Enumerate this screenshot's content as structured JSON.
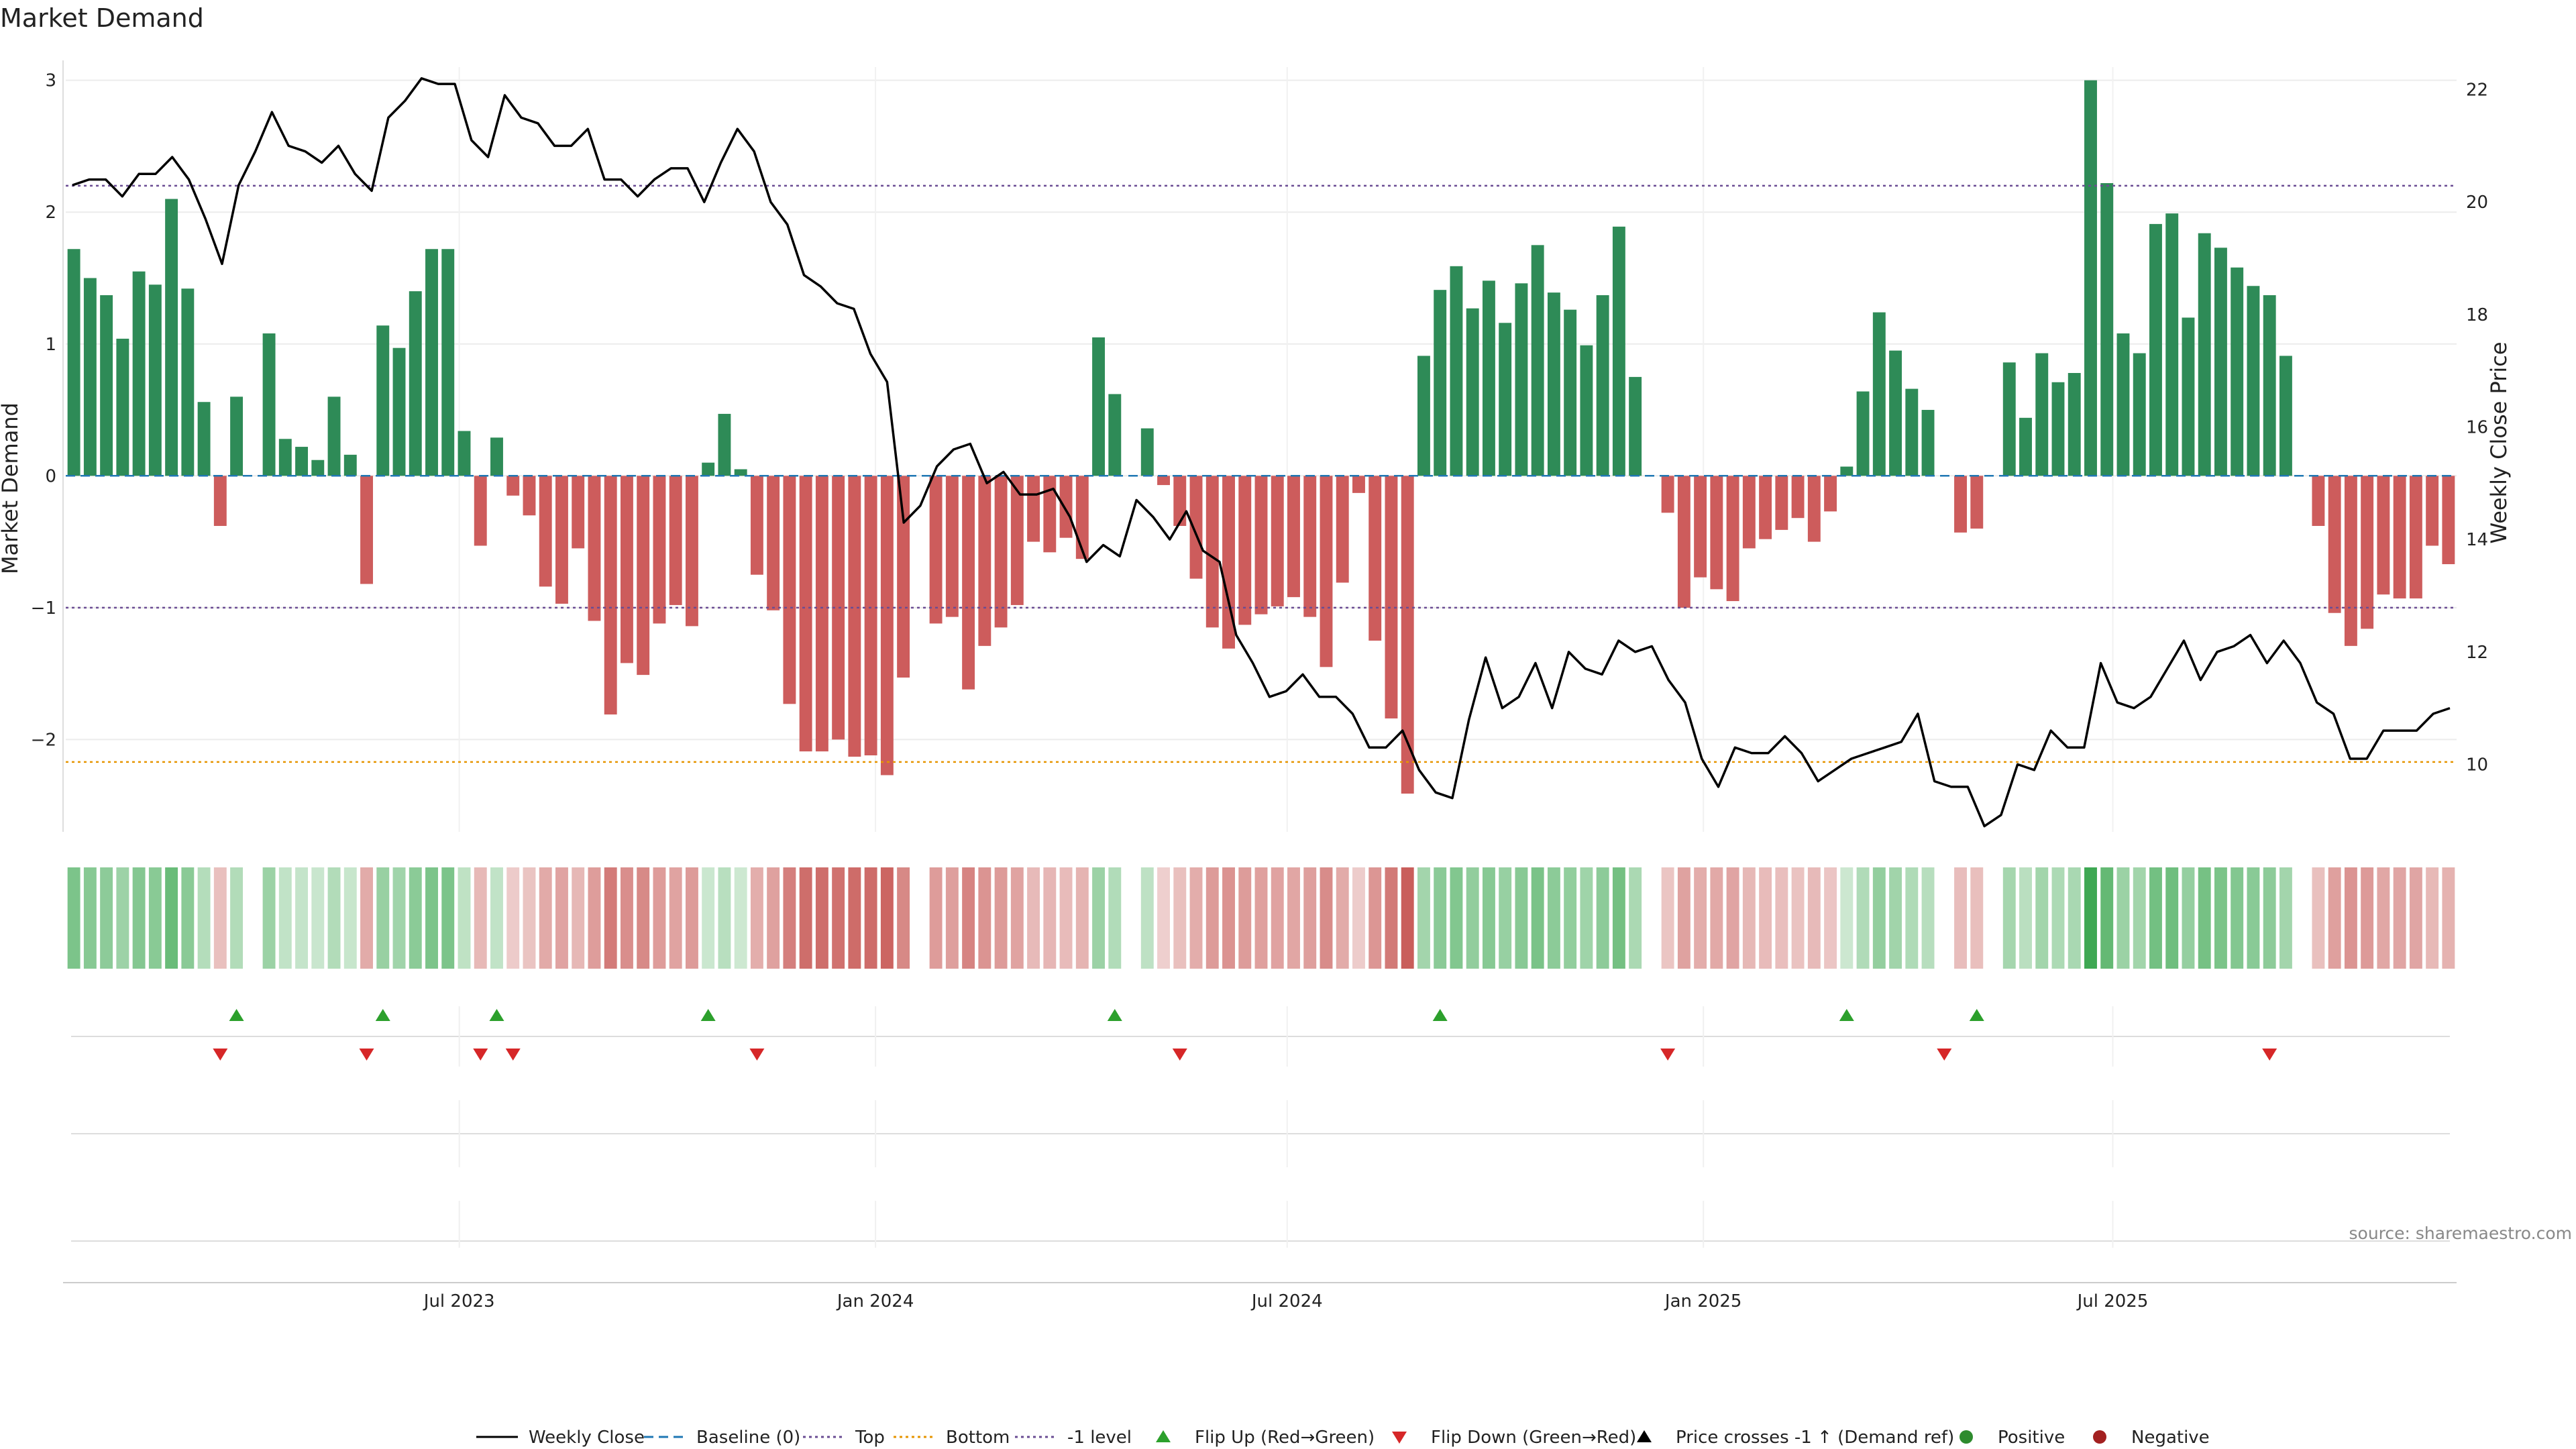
{
  "chart_data": {
    "type": "bar",
    "title": "Market Demand",
    "ylabel": "Market Demand",
    "y2label": "Weekly Close Price",
    "ylim": [
      -2.7,
      3.1
    ],
    "y2lim": [
      8.8,
      22.4
    ],
    "yticks": [
      3,
      2,
      1,
      0,
      -1,
      -2
    ],
    "yticklabels": [
      "3",
      "2",
      "1",
      "0",
      "−1",
      "−2"
    ],
    "y2ticks": [
      22,
      20,
      18,
      16,
      14,
      12,
      10
    ],
    "y2ticklabels": [
      "22",
      "20",
      "18",
      "16",
      "14",
      "12",
      "10"
    ],
    "reference_lines": {
      "top": 2.2,
      "bottom": -2.17,
      "minus_one": -1.0
    },
    "x_start": "2023-01-08",
    "x_end": "2025-11-30",
    "x_ticks": [
      {
        "date": "2023-07-01",
        "label": "Jul 2023"
      },
      {
        "date": "2024-01-01",
        "label": "Jan 2024"
      },
      {
        "date": "2024-07-01",
        "label": "Jul 2024"
      },
      {
        "date": "2025-01-01",
        "label": "Jan 2025"
      },
      {
        "date": "2025-07-01",
        "label": "Jul 2025"
      }
    ],
    "demand": [
      1.72,
      1.5,
      1.37,
      1.04,
      1.55,
      1.45,
      2.1,
      1.42,
      0.56,
      -0.38,
      0.6,
      0,
      1.08,
      0.28,
      0.22,
      0.12,
      0.6,
      0.16,
      -0.82,
      1.14,
      0.97,
      1.4,
      1.72,
      1.72,
      0.34,
      -0.53,
      0.29,
      -0.15,
      -0.3,
      -0.84,
      -0.97,
      -0.55,
      -1.1,
      -1.81,
      -1.42,
      -1.51,
      -1.12,
      -0.98,
      -1.14,
      0.1,
      0.47,
      0.05,
      -0.75,
      -1.02,
      -1.73,
      -2.09,
      -2.09,
      -2.0,
      -2.13,
      -2.12,
      -2.27,
      -1.53,
      0,
      -1.12,
      -1.07,
      -1.62,
      -1.29,
      -1.15,
      -0.98,
      -0.5,
      -0.58,
      -0.47,
      -0.63,
      1.05,
      0.62,
      0.0,
      0.36,
      -0.07,
      -0.38,
      -0.78,
      -1.15,
      -1.31,
      -1.13,
      -1.05,
      -0.99,
      -0.92,
      -1.07,
      -1.45,
      -0.81,
      -0.13,
      -1.25,
      -1.84,
      -2.41,
      0.91,
      1.41,
      1.59,
      1.27,
      1.48,
      1.16,
      1.46,
      1.75,
      1.39,
      1.26,
      0.99,
      1.37,
      1.89,
      0.75,
      0,
      -0.28,
      -1.0,
      -0.77,
      -0.86,
      -0.95,
      -0.55,
      -0.48,
      -0.41,
      -0.32,
      -0.5,
      -0.27,
      0.07,
      0.64,
      1.24,
      0.95,
      0.66,
      0.5,
      0,
      -0.43,
      -0.4,
      0,
      0.86,
      0.44,
      0.93,
      0.71,
      0.78,
      3.0,
      2.22,
      1.08,
      0.93,
      1.91,
      1.99,
      1.2,
      1.84,
      1.73,
      1.58,
      1.44,
      1.37,
      0.91,
      0,
      -0.38,
      -1.04,
      -1.29,
      -1.16,
      -0.9,
      -0.93,
      -0.93,
      -0.53,
      -0.67
    ],
    "weekly_close": [
      20.3,
      20.4,
      20.4,
      20.1,
      20.5,
      20.5,
      20.8,
      20.4,
      19.7,
      18.9,
      20.3,
      20.9,
      21.6,
      21.0,
      20.9,
      20.7,
      21.0,
      20.5,
      20.2,
      21.5,
      21.8,
      22.2,
      22.1,
      22.1,
      21.1,
      20.8,
      21.9,
      21.5,
      21.4,
      21.0,
      21.0,
      21.3,
      20.4,
      20.4,
      20.1,
      20.4,
      20.6,
      20.6,
      20.0,
      20.7,
      21.3,
      20.9,
      20.0,
      19.6,
      18.7,
      18.5,
      18.2,
      18.1,
      17.3,
      16.8,
      14.3,
      14.6,
      15.3,
      15.6,
      15.7,
      15.0,
      15.2,
      14.8,
      14.8,
      14.9,
      14.4,
      13.6,
      13.9,
      13.7,
      14.7,
      14.4,
      14.0,
      14.5,
      13.8,
      13.6,
      12.3,
      11.8,
      11.2,
      11.3,
      11.6,
      11.2,
      11.2,
      10.9,
      10.3,
      10.3,
      10.6,
      9.9,
      9.5,
      9.4,
      10.8,
      11.9,
      11.0,
      11.2,
      11.8,
      11.0,
      12.0,
      11.7,
      11.6,
      12.2,
      12.0,
      12.1,
      11.5,
      11.1,
      10.1,
      9.6,
      10.3,
      10.2,
      10.2,
      10.5,
      10.2,
      9.7,
      9.9,
      10.1,
      10.2,
      10.3,
      10.4,
      10.9,
      9.7,
      9.6,
      9.6,
      8.9,
      9.1,
      10.0,
      9.9,
      10.6,
      10.3,
      10.3,
      11.8,
      11.1,
      11.0,
      11.2,
      11.7,
      12.2,
      11.5,
      12.0,
      12.1,
      12.3,
      11.8,
      12.2,
      11.8,
      11.1,
      10.9,
      10.1,
      10.1,
      10.6,
      10.6,
      10.6,
      10.9,
      11.0
    ],
    "flip_up_weeks": [
      10,
      19,
      26,
      39,
      64,
      84,
      109,
      117
    ],
    "flip_down_weeks": [
      9,
      18,
      25,
      27,
      42,
      68,
      98,
      115,
      135
    ],
    "legend_position": "bottom",
    "legend": [
      {
        "label": "Weekly Close",
        "symbol": "line-solid",
        "color": "#000000"
      },
      {
        "label": "Baseline (0)",
        "symbol": "line-dashed",
        "color": "#1f77b4"
      },
      {
        "label": "Top",
        "symbol": "line-dotted",
        "color": "#6a4c93"
      },
      {
        "label": "Bottom",
        "symbol": "line-dotted",
        "color": "#e69500"
      },
      {
        "label": "-1 level",
        "symbol": "line-dotted",
        "color": "#6a4c93"
      },
      {
        "label": "Flip Up (Red→Green)",
        "symbol": "triangle-up",
        "color": "#2ca02c"
      },
      {
        "label": "Flip Down (Green→Red)",
        "symbol": "triangle-down",
        "color": "#d62728"
      },
      {
        "label": "Price crosses -1 ↑ (Demand ref)",
        "symbol": "triangle-up",
        "color": "#000000"
      },
      {
        "label": "Positive",
        "symbol": "dot",
        "color": "#2e8b2e"
      },
      {
        "label": "Negative",
        "symbol": "dot",
        "color": "#a32020"
      }
    ],
    "colors": {
      "positive_bar": "#2e8b57",
      "negative_bar": "#cd5c5c",
      "price_line": "#000000",
      "flip_up": "#2ca02c",
      "flip_down": "#d62728"
    }
  },
  "source_note": "source: sharemaestro.com"
}
